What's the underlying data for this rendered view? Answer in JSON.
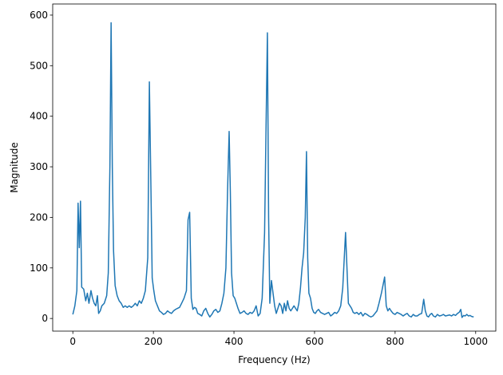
{
  "chart_data": {
    "type": "line",
    "x_label": "Frequency (Hz)",
    "y_label": "Magnitude",
    "x": [
      0,
      5,
      10,
      13,
      16,
      19,
      22,
      27,
      32,
      36,
      40,
      45,
      49,
      53,
      57,
      61,
      64,
      68,
      72,
      78,
      84,
      88,
      92,
      95,
      98,
      101,
      105,
      110,
      115,
      120,
      125,
      130,
      135,
      140,
      145,
      150,
      155,
      160,
      165,
      170,
      175,
      180,
      186,
      190,
      194,
      197,
      201,
      205,
      210,
      215,
      220,
      225,
      230,
      235,
      240,
      245,
      250,
      255,
      260,
      265,
      270,
      276,
      282,
      286,
      290,
      294,
      298,
      302,
      306,
      310,
      315,
      320,
      325,
      330,
      335,
      340,
      345,
      350,
      355,
      360,
      365,
      370,
      375,
      380,
      384,
      388,
      391,
      394,
      398,
      402,
      406,
      410,
      415,
      420,
      425,
      430,
      435,
      440,
      445,
      450,
      455,
      460,
      465,
      470,
      476,
      480,
      483,
      486,
      489,
      493,
      497,
      501,
      505,
      509,
      513,
      517,
      521,
      525,
      529,
      533,
      537,
      541,
      545,
      549,
      553,
      557,
      561,
      565,
      569,
      573,
      577,
      580,
      583,
      586,
      590,
      594,
      598,
      602,
      606,
      610,
      615,
      620,
      625,
      630,
      635,
      640,
      645,
      650,
      655,
      660,
      665,
      670,
      677,
      681,
      684,
      688,
      692,
      696,
      700,
      705,
      710,
      715,
      720,
      725,
      730,
      735,
      740,
      745,
      750,
      755,
      760,
      766,
      774,
      778,
      782,
      786,
      790,
      795,
      800,
      805,
      810,
      815,
      820,
      825,
      830,
      835,
      840,
      845,
      850,
      855,
      860,
      866,
      871,
      875,
      879,
      883,
      887,
      891,
      895,
      900,
      905,
      910,
      915,
      920,
      925,
      930,
      935,
      940,
      945,
      950,
      955,
      959,
      963,
      966,
      970,
      974,
      978,
      982,
      986,
      990,
      995
    ],
    "series": [
      {
        "color": "#1f77b4",
        "values": [
          8,
          25,
          55,
          228,
          140,
          232,
          62,
          58,
          35,
          50,
          30,
          55,
          40,
          30,
          25,
          45,
          10,
          15,
          25,
          30,
          45,
          90,
          300,
          585,
          300,
          135,
          65,
          45,
          35,
          30,
          22,
          25,
          22,
          25,
          22,
          25,
          30,
          25,
          35,
          30,
          40,
          55,
          120,
          468,
          250,
          80,
          55,
          35,
          25,
          15,
          12,
          8,
          10,
          15,
          12,
          10,
          15,
          18,
          20,
          22,
          30,
          40,
          55,
          195,
          210,
          40,
          18,
          22,
          20,
          10,
          8,
          5,
          15,
          20,
          10,
          3,
          8,
          15,
          18,
          12,
          15,
          30,
          50,
          100,
          250,
          370,
          250,
          90,
          45,
          40,
          30,
          20,
          10,
          12,
          15,
          10,
          8,
          12,
          10,
          15,
          25,
          5,
          10,
          40,
          170,
          400,
          565,
          200,
          30,
          75,
          50,
          25,
          10,
          20,
          30,
          25,
          10,
          30,
          15,
          35,
          20,
          15,
          20,
          25,
          20,
          15,
          30,
          60,
          100,
          130,
          200,
          330,
          120,
          50,
          40,
          20,
          12,
          10,
          15,
          18,
          12,
          10,
          8,
          10,
          12,
          5,
          8,
          12,
          10,
          15,
          25,
          60,
          170,
          90,
          30,
          25,
          20,
          12,
          10,
          12,
          8,
          12,
          5,
          10,
          8,
          5,
          3,
          5,
          10,
          15,
          30,
          50,
          82,
          25,
          15,
          20,
          15,
          10,
          8,
          12,
          10,
          8,
          5,
          8,
          10,
          5,
          3,
          8,
          5,
          5,
          8,
          10,
          38,
          15,
          5,
          3,
          8,
          10,
          5,
          3,
          8,
          5,
          6,
          8,
          5,
          6,
          7,
          5,
          8,
          6,
          10,
          12,
          18,
          2,
          6,
          5,
          8,
          5,
          6,
          4,
          3
        ]
      }
    ],
    "xlim": [
      -50,
      1050
    ],
    "ylim": [
      -25,
      622
    ],
    "xticks": [
      0,
      200,
      400,
      600,
      800,
      1000
    ],
    "yticks": [
      0,
      100,
      200,
      300,
      400,
      500,
      600
    ]
  }
}
